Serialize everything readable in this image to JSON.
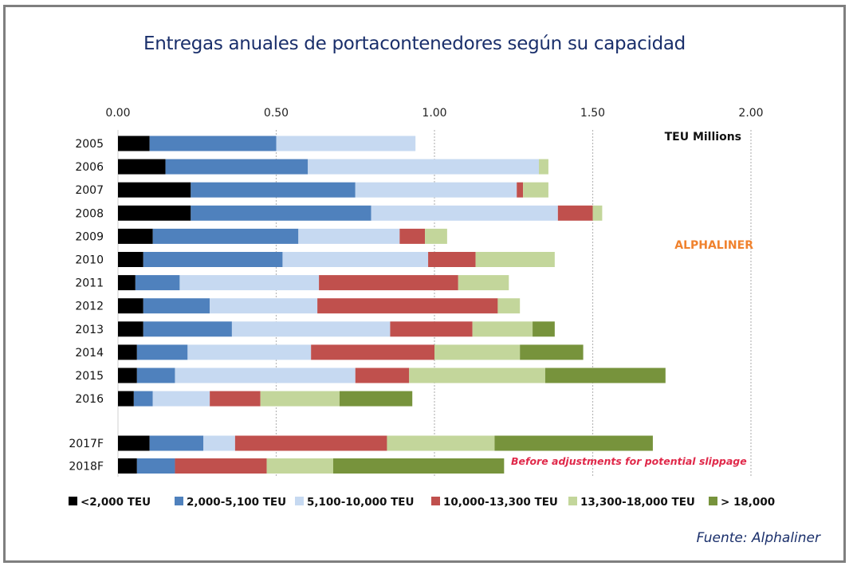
{
  "chart_data": {
    "type": "bar",
    "orientation": "horizontal",
    "stacked": true,
    "title": "Entregas anuales de portacontenedores según su capacidad",
    "xlabel": "TEU Millions",
    "ylabel": "",
    "xlim": [
      0,
      2.0
    ],
    "x_ticks": [
      "0.00",
      "0.50",
      "1.00",
      "1.50",
      "2.00"
    ],
    "x_tick_values": [
      0,
      0.5,
      1.0,
      1.5,
      2.0
    ],
    "x_axis_position": "top",
    "grid": true,
    "legend_position": "bottom",
    "categories": [
      "2005",
      "2006",
      "2007",
      "2008",
      "2009",
      "2010",
      "2011",
      "2012",
      "2013",
      "2014",
      "2015",
      "2016",
      "2017F",
      "2018F"
    ],
    "forecast_gap_before": "2017F",
    "series": [
      {
        "name": "<2,000 TEU",
        "color": "#000000",
        "values": [
          0.1,
          0.15,
          0.23,
          0.23,
          0.11,
          0.08,
          0.055,
          0.08,
          0.08,
          0.06,
          0.06,
          0.05,
          0.1,
          0.06
        ]
      },
      {
        "name": "2,000-5,100 TEU",
        "color": "#4f81bd",
        "values": [
          0.4,
          0.45,
          0.52,
          0.57,
          0.46,
          0.44,
          0.14,
          0.21,
          0.28,
          0.16,
          0.12,
          0.06,
          0.17,
          0.12
        ]
      },
      {
        "name": "5,100-10,000 TEU",
        "color": "#c6d9f1",
        "values": [
          0.44,
          0.73,
          0.51,
          0.59,
          0.32,
          0.46,
          0.44,
          0.34,
          0.5,
          0.39,
          0.57,
          0.18,
          0.1,
          0.0
        ]
      },
      {
        "name": "10,000-13,300 TEU",
        "color": "#c0504d",
        "values": [
          0.0,
          0.0,
          0.02,
          0.11,
          0.08,
          0.15,
          0.44,
          0.57,
          0.26,
          0.39,
          0.17,
          0.16,
          0.48,
          0.29
        ]
      },
      {
        "name": "13,300-18,000 TEU",
        "color": "#c3d69b",
        "values": [
          0.0,
          0.03,
          0.08,
          0.03,
          0.07,
          0.25,
          0.16,
          0.07,
          0.19,
          0.27,
          0.43,
          0.25,
          0.34,
          0.21
        ]
      },
      {
        "name": "> 18,000",
        "color": "#77933c",
        "values": [
          0.0,
          0.0,
          0.0,
          0.0,
          0.0,
          0.0,
          0.0,
          0.0,
          0.07,
          0.2,
          0.38,
          0.23,
          0.5,
          0.54
        ]
      }
    ],
    "annotations": [
      {
        "text": "ALPHALINER",
        "color": "#f0822e"
      },
      {
        "text": "Before adjustments for potential slippage",
        "color": "#e0294a"
      }
    ]
  },
  "header": {
    "title": "Entregas anuales de portacontenedores según su capacidad"
  },
  "labels": {
    "unit": "TEU Millions",
    "brand": "ALPHALINER",
    "note": "Before adjustments for potential slippage"
  },
  "footer": {
    "source": "Fuente: Alphaliner"
  }
}
